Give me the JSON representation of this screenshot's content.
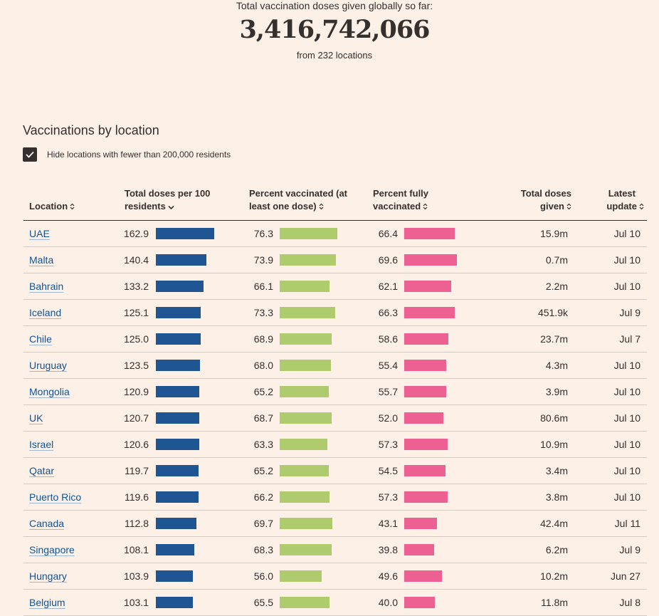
{
  "header": {
    "caption": "Total vaccination doses given globally so far:",
    "total": "3,416,742,066",
    "sub": "from 232 locations"
  },
  "section": {
    "title": "Vaccinations by location",
    "filter_label": "Hide locations with fewer than 200,000 residents",
    "filter_checked": true
  },
  "columns": {
    "location": "Location",
    "doses_per_100_line1": "Total doses per 100",
    "doses_per_100_line2": "residents",
    "pct_one_line1": "Percent vaccinated (at",
    "pct_one_line2": "least one dose)",
    "pct_full_line1": "Percent fully",
    "pct_full_line2": "vaccinated",
    "total_line1": "Total doses",
    "total_line2": "given",
    "update_line1": "Latest",
    "update_line2": "update"
  },
  "colors": {
    "doses_bar": "#1f5592",
    "pct_one_bar": "#aecb6e",
    "pct_full_bar": "#ed6192",
    "background": "#fdf0e6"
  },
  "rows": [
    {
      "location": "UAE",
      "doses": "162.9",
      "pct_one": "76.3",
      "pct_full": "66.4",
      "total": "15.9m",
      "update": "Jul 10"
    },
    {
      "location": "Malta",
      "doses": "140.4",
      "pct_one": "73.9",
      "pct_full": "69.6",
      "total": "0.7m",
      "update": "Jul 10"
    },
    {
      "location": "Bahrain",
      "doses": "133.2",
      "pct_one": "66.1",
      "pct_full": "62.1",
      "total": "2.2m",
      "update": "Jul 10"
    },
    {
      "location": "Iceland",
      "doses": "125.1",
      "pct_one": "73.3",
      "pct_full": "66.3",
      "total": "451.9k",
      "update": "Jul 9"
    },
    {
      "location": "Chile",
      "doses": "125.0",
      "pct_one": "68.9",
      "pct_full": "58.6",
      "total": "23.7m",
      "update": "Jul 7"
    },
    {
      "location": "Uruguay",
      "doses": "123.5",
      "pct_one": "68.0",
      "pct_full": "55.4",
      "total": "4.3m",
      "update": "Jul 10"
    },
    {
      "location": "Mongolia",
      "doses": "120.9",
      "pct_one": "65.2",
      "pct_full": "55.7",
      "total": "3.9m",
      "update": "Jul 10"
    },
    {
      "location": "UK",
      "doses": "120.7",
      "pct_one": "68.7",
      "pct_full": "52.0",
      "total": "80.6m",
      "update": "Jul 10"
    },
    {
      "location": "Israel",
      "doses": "120.6",
      "pct_one": "63.3",
      "pct_full": "57.3",
      "total": "10.9m",
      "update": "Jul 10"
    },
    {
      "location": "Qatar",
      "doses": "119.7",
      "pct_one": "65.2",
      "pct_full": "54.5",
      "total": "3.4m",
      "update": "Jul 10"
    },
    {
      "location": "Puerto Rico",
      "doses": "119.6",
      "pct_one": "66.2",
      "pct_full": "57.3",
      "total": "3.8m",
      "update": "Jul 10"
    },
    {
      "location": "Canada",
      "doses": "112.8",
      "pct_one": "69.7",
      "pct_full": "43.1",
      "total": "42.4m",
      "update": "Jul 11"
    },
    {
      "location": "Singapore",
      "doses": "108.1",
      "pct_one": "68.3",
      "pct_full": "39.8",
      "total": "6.2m",
      "update": "Jul 9"
    },
    {
      "location": "Hungary",
      "doses": "103.9",
      "pct_one": "56.0",
      "pct_full": "49.6",
      "total": "10.2m",
      "update": "Jun 27"
    },
    {
      "location": "Belgium",
      "doses": "103.1",
      "pct_one": "65.5",
      "pct_full": "40.0",
      "total": "11.8m",
      "update": "Jul 8"
    }
  ]
}
